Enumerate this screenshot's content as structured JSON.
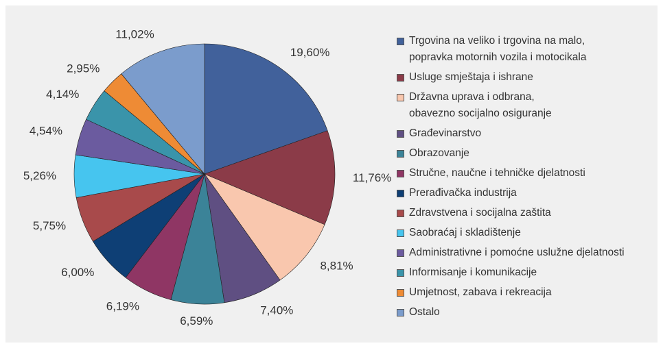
{
  "chart_data": {
    "type": "pie",
    "categories": [
      "Trgovina na veliko i trgovina na malo,\npopravka motornih vozila i motocikala",
      "Usluge smještaja i ishrane",
      "Državna uprava i odbrana,\nobavezno socijalno osiguranje",
      "Građevinarstvo",
      "Obrazovanje",
      "Stručne, naučne i tehničke djelatnosti",
      "Prerađivačka industrija",
      "Zdravstvena i socijalna zaštita",
      "Saobraćaj i skladištenje",
      "Administrativne i pomoćne uslužne djelatnosti",
      "Informisanje i komunikacije",
      "Umjetnost, zabava i rekreacija",
      "Ostalo"
    ],
    "values": [
      19.6,
      11.76,
      8.81,
      7.4,
      6.59,
      6.19,
      6.0,
      5.75,
      5.26,
      4.54,
      4.14,
      2.95,
      11.02
    ],
    "value_labels": [
      "19,60%",
      "11,76%",
      "8,81%",
      "7,40%",
      "6,59%",
      "6,19%",
      "6,00%",
      "5,75%",
      "5,26%",
      "4,54%",
      "4,14%",
      "2,95%",
      "11,02%"
    ],
    "colors": [
      "#41619b",
      "#8b3b48",
      "#f9c7ae",
      "#5f4f82",
      "#3b8398",
      "#8f3664",
      "#0e3f75",
      "#a84a4b",
      "#46c5ef",
      "#6b5b9f",
      "#3a94aa",
      "#ee8b35",
      "#7b9ccc"
    ],
    "legend": "right"
  }
}
